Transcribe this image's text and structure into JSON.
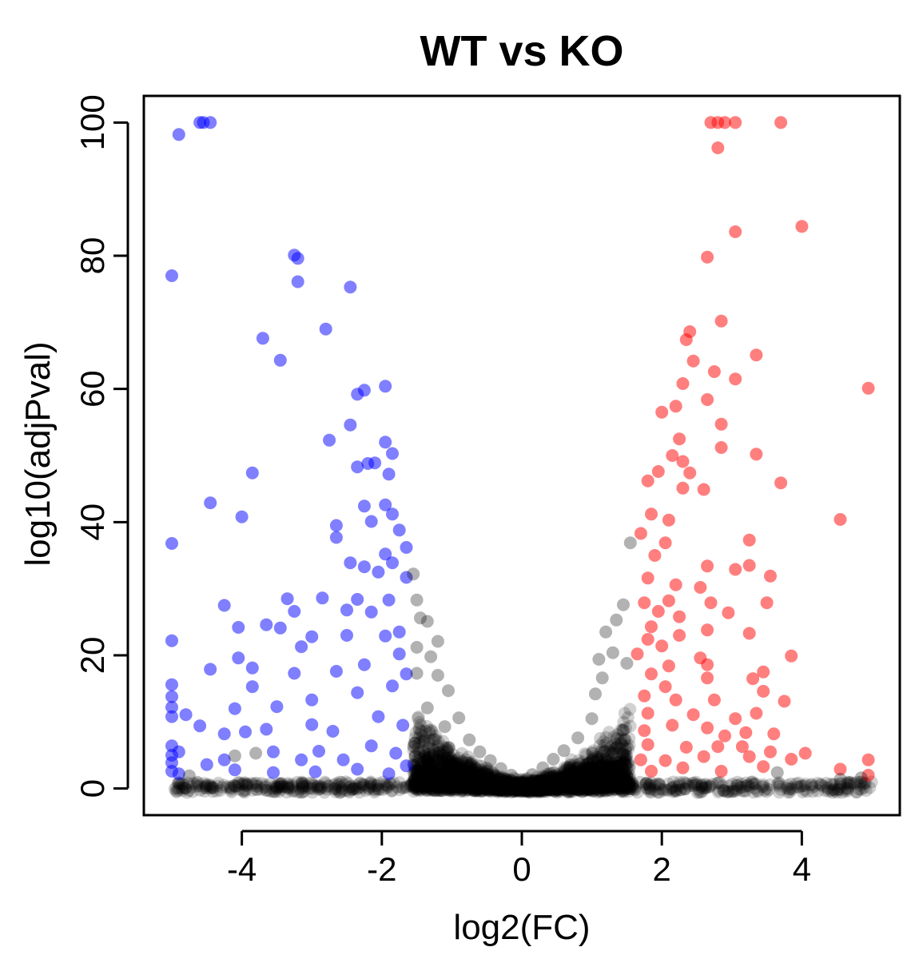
{
  "chart_data": {
    "type": "scatter",
    "title": "WT vs KO",
    "xlabel": "log2(FC)",
    "ylabel": "log10(adjPval)",
    "xlim": [
      -5.4,
      5.4
    ],
    "ylim": [
      -4,
      104
    ],
    "x_ticks": [
      {
        "value": -4,
        "label": "-4"
      },
      {
        "value": -2,
        "label": "-2"
      },
      {
        "value": 0,
        "label": "0"
      },
      {
        "value": 2,
        "label": "2"
      },
      {
        "value": 4,
        "label": "4"
      }
    ],
    "y_ticks": [
      {
        "value": 0,
        "label": "0"
      },
      {
        "value": 20,
        "label": "20"
      },
      {
        "value": 40,
        "label": "40"
      },
      {
        "value": 60,
        "label": "60"
      },
      {
        "value": 80,
        "label": "80"
      },
      {
        "value": 100,
        "label": "100"
      }
    ],
    "grid": false,
    "legend": "none",
    "colors": {
      "down": "#0000ff",
      "up": "#ff0000",
      "not_significant": "#000000",
      "point_opacity": 0.5
    },
    "series": [
      {
        "group": "down",
        "points": [
          [
            -4.6,
            100
          ],
          [
            -4.55,
            100
          ],
          [
            -4.45,
            100
          ],
          [
            -4.9,
            98.2
          ],
          [
            -5.0,
            77
          ],
          [
            -3.25,
            80.1
          ],
          [
            -3.2,
            79.6
          ],
          [
            -3.2,
            76.1
          ],
          [
            -2.45,
            75.3
          ],
          [
            -3.7,
            67.6
          ],
          [
            -2.8,
            69
          ],
          [
            -3.45,
            64.3
          ],
          [
            -2.35,
            59.2
          ],
          [
            -2.25,
            59.8
          ],
          [
            -1.95,
            60.4
          ],
          [
            -2.45,
            54.6
          ],
          [
            -2.75,
            52.3
          ],
          [
            -1.95,
            52
          ],
          [
            -1.9,
            47.2
          ],
          [
            -2.2,
            48.8
          ],
          [
            -2.1,
            48.9
          ],
          [
            -2.35,
            48.3
          ],
          [
            -1.85,
            50.3
          ],
          [
            -3.85,
            47.4
          ],
          [
            -4.45,
            42.9
          ],
          [
            -4.0,
            40.8
          ],
          [
            -2.25,
            42.4
          ],
          [
            -1.95,
            42.6
          ],
          [
            -1.85,
            41.2
          ],
          [
            -2.15,
            40.1
          ],
          [
            -2.65,
            39.5
          ],
          [
            -2.65,
            37.7
          ],
          [
            -1.75,
            38.8
          ],
          [
            -1.65,
            36.2
          ],
          [
            -1.95,
            35.2
          ],
          [
            -5.0,
            36.8
          ],
          [
            -2.45,
            33.9
          ],
          [
            -2.25,
            33.3
          ],
          [
            -2.05,
            32.5
          ],
          [
            -1.85,
            33.9
          ],
          [
            -1.65,
            31.7
          ],
          [
            -2.35,
            28.4
          ],
          [
            -2.85,
            28.6
          ],
          [
            -3.35,
            28.5
          ],
          [
            -4.25,
            27.5
          ],
          [
            -1.9,
            28.3
          ],
          [
            -2.15,
            26.5
          ],
          [
            -2.5,
            26.8
          ],
          [
            -3.25,
            26.6
          ],
          [
            -3.65,
            24.6
          ],
          [
            -4.05,
            24.2
          ],
          [
            -3.45,
            24.1
          ],
          [
            -3.0,
            22.8
          ],
          [
            -3.15,
            21.3
          ],
          [
            -2.5,
            23
          ],
          [
            -1.95,
            22.9
          ],
          [
            -1.75,
            23.5
          ],
          [
            -5.0,
            22.2
          ],
          [
            -4.45,
            17.9
          ],
          [
            -4.05,
            19.6
          ],
          [
            -3.85,
            18.1
          ],
          [
            -3.85,
            15.3
          ],
          [
            -3.25,
            17.3
          ],
          [
            -2.65,
            17.6
          ],
          [
            -2.25,
            18.6
          ],
          [
            -1.65,
            17.2
          ],
          [
            -1.75,
            20.2
          ],
          [
            -5.0,
            15.6
          ],
          [
            -5.0,
            13.8
          ],
          [
            -5.0,
            12.2
          ],
          [
            -5.0,
            10.8
          ],
          [
            -4.8,
            11.1
          ],
          [
            -4.1,
            12
          ],
          [
            -3.5,
            12.3
          ],
          [
            -3.0,
            13.3
          ],
          [
            -2.35,
            14.4
          ],
          [
            -1.85,
            15.4
          ],
          [
            -4.6,
            9.4
          ],
          [
            -4.25,
            8.2
          ],
          [
            -3.95,
            8.5
          ],
          [
            -3.65,
            8.9
          ],
          [
            -3.0,
            9.6
          ],
          [
            -2.7,
            8.6
          ],
          [
            -2.05,
            10.8
          ],
          [
            -1.7,
            9.5
          ],
          [
            -5.0,
            6.4
          ],
          [
            -5.0,
            5.0
          ],
          [
            -5.0,
            3.9
          ],
          [
            -5.0,
            2.6
          ],
          [
            -4.9,
            5.5
          ],
          [
            -4.5,
            3.6
          ],
          [
            -4.25,
            4.3
          ],
          [
            -3.55,
            5.5
          ],
          [
            -3.15,
            4.3
          ],
          [
            -2.9,
            5.6
          ],
          [
            -2.55,
            4.3
          ],
          [
            -2.15,
            6.4
          ],
          [
            -1.8,
            5.3
          ],
          [
            -1.65,
            3.4
          ],
          [
            -4.9,
            2.2
          ],
          [
            -4.1,
            2.8
          ],
          [
            -3.55,
            2.4
          ],
          [
            -2.95,
            2.5
          ],
          [
            -2.35,
            2.9
          ],
          [
            -1.9,
            2.2
          ]
        ]
      },
      {
        "group": "up",
        "points": [
          [
            2.7,
            100
          ],
          [
            2.8,
            100
          ],
          [
            2.9,
            100
          ],
          [
            3.05,
            100
          ],
          [
            3.7,
            100
          ],
          [
            2.8,
            96.2
          ],
          [
            4.0,
            84.4
          ],
          [
            3.05,
            83.6
          ],
          [
            2.65,
            79.8
          ],
          [
            2.85,
            70.2
          ],
          [
            2.4,
            68.6
          ],
          [
            2.35,
            67.4
          ],
          [
            3.35,
            65.1
          ],
          [
            2.45,
            64.2
          ],
          [
            3.05,
            61.5
          ],
          [
            2.75,
            62.6
          ],
          [
            2.3,
            60.8
          ],
          [
            2.65,
            58.4
          ],
          [
            2.2,
            57.4
          ],
          [
            2.0,
            56.5
          ],
          [
            4.95,
            60.1
          ],
          [
            2.85,
            54.7
          ],
          [
            2.25,
            52.5
          ],
          [
            2.15,
            50
          ],
          [
            2.85,
            51.2
          ],
          [
            3.35,
            50.2
          ],
          [
            2.3,
            49.1
          ],
          [
            2.4,
            47.4
          ],
          [
            1.95,
            47.6
          ],
          [
            1.8,
            46.2
          ],
          [
            2.3,
            45.1
          ],
          [
            2.6,
            44.9
          ],
          [
            3.7,
            45.9
          ],
          [
            4.55,
            40.4
          ],
          [
            1.85,
            41.2
          ],
          [
            2.1,
            40.3
          ],
          [
            1.7,
            38.3
          ],
          [
            2.05,
            36.9
          ],
          [
            1.9,
            35
          ],
          [
            3.25,
            37.3
          ],
          [
            2.65,
            33.4
          ],
          [
            3.05,
            32.9
          ],
          [
            3.25,
            33.5
          ],
          [
            3.55,
            31.9
          ],
          [
            1.8,
            31.6
          ],
          [
            2.2,
            30.6
          ],
          [
            2.55,
            30.2
          ],
          [
            2.1,
            28.2
          ],
          [
            2.7,
            27.9
          ],
          [
            1.75,
            27.9
          ],
          [
            3.5,
            27.9
          ],
          [
            1.95,
            26.6
          ],
          [
            2.25,
            25.8
          ],
          [
            2.95,
            26.4
          ],
          [
            1.85,
            24.3
          ],
          [
            2.65,
            23.8
          ],
          [
            2.25,
            23
          ],
          [
            1.8,
            22.4
          ],
          [
            2.0,
            21.4
          ],
          [
            3.25,
            23.3
          ],
          [
            3.85,
            19.9
          ],
          [
            2.55,
            19.6
          ],
          [
            2.65,
            18.6
          ],
          [
            2.1,
            18.4
          ],
          [
            1.65,
            20.2
          ],
          [
            3.45,
            17.5
          ],
          [
            1.85,
            17.2
          ],
          [
            2.65,
            16.6
          ],
          [
            3.3,
            16.5
          ],
          [
            2.05,
            15.3
          ],
          [
            3.45,
            14.6
          ],
          [
            1.75,
            13.9
          ],
          [
            2.2,
            13.3
          ],
          [
            2.75,
            13.3
          ],
          [
            3.35,
            11.3
          ],
          [
            3.75,
            13.1
          ],
          [
            1.8,
            11.3
          ],
          [
            2.45,
            11.1
          ],
          [
            3.05,
            10.5
          ],
          [
            2.15,
            9.5
          ],
          [
            2.65,
            9.1
          ],
          [
            2.9,
            7.9
          ],
          [
            1.75,
            8.7
          ],
          [
            3.2,
            8.4
          ],
          [
            3.6,
            8.2
          ],
          [
            1.8,
            6.6
          ],
          [
            2.35,
            6.2
          ],
          [
            2.8,
            6.3
          ],
          [
            3.15,
            6.3
          ],
          [
            3.55,
            5.5
          ],
          [
            4.05,
            5.3
          ],
          [
            1.7,
            4.3
          ],
          [
            2.05,
            4.2
          ],
          [
            2.6,
            4.8
          ],
          [
            3.25,
            4.8
          ],
          [
            3.85,
            4.4
          ],
          [
            4.95,
            4.3
          ],
          [
            1.85,
            2.6
          ],
          [
            2.3,
            3.1
          ],
          [
            2.85,
            2.6
          ],
          [
            3.45,
            3.3
          ],
          [
            4.55,
            2.9
          ],
          [
            4.95,
            2.0
          ]
        ]
      },
      {
        "group": "not_significant",
        "points": [
          [
            -1.55,
            32.2
          ],
          [
            -1.5,
            28.3
          ],
          [
            -1.45,
            25.6
          ],
          [
            -1.35,
            25.1
          ],
          [
            -1.5,
            21.2
          ],
          [
            -1.3,
            19.8
          ],
          [
            -1.2,
            17
          ],
          [
            -1.05,
            14.7
          ],
          [
            -1.35,
            12.1
          ],
          [
            -0.9,
            10.6
          ],
          [
            -1.1,
            9.3
          ],
          [
            -0.75,
            7.3
          ],
          [
            -0.6,
            5.5
          ],
          [
            -0.45,
            4.2
          ],
          [
            -0.3,
            3
          ],
          [
            -0.15,
            2
          ],
          [
            0.15,
            2.1
          ],
          [
            0.3,
            3.1
          ],
          [
            0.45,
            4.4
          ],
          [
            0.6,
            5.7
          ],
          [
            0.8,
            7.6
          ],
          [
            1.0,
            10.5
          ],
          [
            1.05,
            14.2
          ],
          [
            1.15,
            16.6
          ],
          [
            1.3,
            20.4
          ],
          [
            1.2,
            23.5
          ],
          [
            1.35,
            25.3
          ],
          [
            1.45,
            27.6
          ],
          [
            1.55,
            36.9
          ],
          [
            -4.1,
            4.9
          ],
          [
            -3.8,
            5.3
          ],
          [
            -4.75,
            1.9
          ],
          [
            4.55,
            1.4
          ],
          [
            4.85,
            1.6
          ],
          [
            3.65,
            2.4
          ],
          [
            -1.5,
            17.3
          ],
          [
            1.5,
            18.8
          ],
          [
            -1.2,
            22.1
          ],
          [
            1.1,
            19.4
          ]
        ]
      }
    ]
  }
}
